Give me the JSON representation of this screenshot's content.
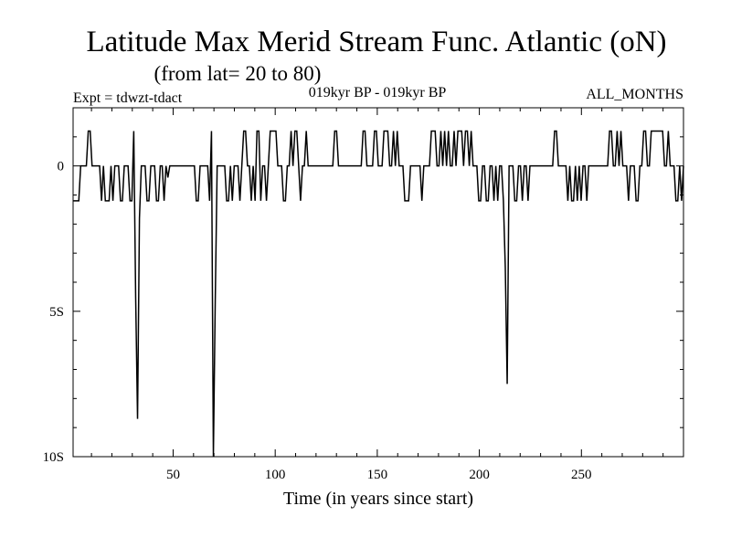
{
  "chart_data": {
    "type": "line",
    "title": "Latitude Max Merid Stream Func. Atlantic (oN)",
    "subtitle": "(from lat= 20 to 80)",
    "expt": "Expt = tdwzt-tdact",
    "period": "019kyr BP - 019kyr BP",
    "months": "ALL_MONTHS",
    "xlabel": "Time (in years since start)",
    "ylabel": "",
    "xlim": [
      1,
      300
    ],
    "ylim": [
      -10,
      2
    ],
    "x_ticks": [
      50,
      100,
      150,
      200,
      250
    ],
    "x_tick_labels": [
      "50",
      "100",
      "150",
      "200",
      "250"
    ],
    "y_ticks": [
      0,
      -5,
      -10
    ],
    "y_tick_labels": [
      "0",
      "5S",
      "10S"
    ],
    "grid": false,
    "series": [
      {
        "values": [
          -1.2,
          -1.2,
          -1.2,
          -1.2,
          0,
          0,
          0,
          0,
          1.2,
          1.2,
          0,
          0,
          0,
          0,
          0,
          -1.2,
          0,
          -1.2,
          -1.2,
          -1.2,
          0,
          -1.2,
          0,
          0,
          0,
          -1.2,
          -1.2,
          0,
          0,
          0,
          -1.2,
          -1.2,
          1.2,
          -4.5,
          -8.7,
          -1.8,
          0,
          0,
          0,
          -1.2,
          -1.2,
          0,
          0,
          0,
          -1.2,
          -1.2,
          0,
          0,
          -1.2,
          0,
          -0.4,
          0,
          0,
          0,
          0,
          0,
          0,
          0,
          0,
          0,
          0,
          0,
          0,
          0,
          0,
          -1.2,
          -1.2,
          0,
          0,
          0,
          0,
          0,
          -1.2,
          1.2,
          -10,
          -4.6,
          0,
          0,
          0,
          0,
          0,
          -1.2,
          -1.2,
          0,
          -1.2,
          0,
          0,
          0,
          -1.2,
          0,
          1.2,
          1.2,
          0,
          0,
          -1.2,
          0,
          -1.2,
          1.2,
          1.2,
          -1.2,
          0,
          0,
          -1.2,
          0,
          1.2,
          1.2,
          1.2,
          1.2,
          0,
          0,
          0,
          -1.2,
          -1.2,
          0,
          0,
          1.2,
          0,
          1.2,
          1.2,
          0,
          -1.2,
          0,
          0,
          1.2,
          0,
          0,
          0,
          0,
          0,
          0,
          0,
          0,
          0,
          0,
          0,
          0,
          0,
          0,
          1.2,
          1.2,
          0,
          0,
          0,
          0,
          0,
          0,
          0,
          0,
          0,
          0,
          0,
          0,
          0,
          1.2,
          1.2,
          0,
          0,
          0,
          0,
          1.2,
          1.2,
          0,
          0,
          0,
          1.2,
          1.2,
          1.2,
          0,
          0,
          1.2,
          0,
          1.2,
          0,
          0,
          0,
          -1.2,
          -1.2,
          -1.2,
          0,
          0,
          0,
          0,
          0,
          0,
          -1.2,
          0,
          0,
          0,
          0,
          1.2,
          1.2,
          1.2,
          0,
          0,
          1.2,
          0,
          1.2,
          0,
          1.2,
          0,
          0,
          1.2,
          0,
          1.2,
          1.2,
          1.2,
          0,
          1.2,
          1.2,
          0,
          1.2,
          0,
          0,
          0,
          -1.2,
          -1.2,
          0,
          0,
          -1.2,
          -1.2,
          0,
          0,
          -1.2,
          0,
          -1.2,
          0,
          0,
          -1.2,
          -3.5,
          -7.5,
          0,
          0,
          0,
          -1.2,
          -1.2,
          0,
          0,
          -1.2,
          0,
          0,
          -1.2,
          0,
          0,
          0,
          0,
          0,
          0,
          0,
          0,
          0,
          0,
          0,
          0,
          0,
          1.2,
          1.2,
          0,
          0,
          0,
          0,
          0,
          -1.2,
          0,
          -1.2,
          -1.2,
          0,
          -1.2,
          0,
          -1.2,
          0,
          0,
          -1.2,
          0,
          0,
          0,
          0,
          0,
          0,
          0,
          0,
          0,
          0,
          0,
          1.2,
          1.2,
          0,
          0,
          1.2,
          0,
          1.2,
          0,
          0,
          0,
          -1.2,
          0,
          0,
          0,
          -1.2,
          -1.2,
          0,
          0,
          1.2,
          1.2,
          0,
          0,
          1.2,
          1.2,
          1.2,
          1.2,
          1.2,
          1.2,
          1.2,
          0,
          0,
          1.2,
          0,
          0,
          0,
          -1.2,
          -1.2,
          0,
          -1.2,
          0
        ]
      }
    ]
  }
}
